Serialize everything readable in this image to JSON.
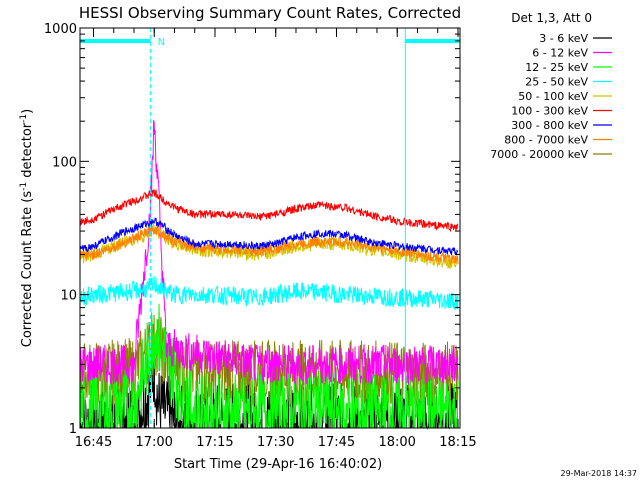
{
  "chart_data": {
    "type": "line",
    "title": "HESSI Observing Summary Count Rates, Corrected",
    "xlabel": "Start Time (29-Apr-16 16:40:02)",
    "ylabel": "Corrected Count Rate (s",
    "ylabel_sup1": "-1",
    "ylabel_mid": " detector",
    "ylabel_sup2": "-1",
    "ylabel_end": ")",
    "yscale": "log",
    "ylim": [
      1,
      1000
    ],
    "xlim_minutes": [
      16.67,
      96.5
    ],
    "x_ticks": [
      "16:45",
      "17:00",
      "17:15",
      "17:30",
      "17:45",
      "18:00",
      "18:15"
    ],
    "x_tick_minutes": [
      20,
      35,
      50,
      65,
      80,
      95,
      110
    ],
    "y_ticks": [
      "1",
      "10",
      "100",
      "1000"
    ],
    "y_tick_values": [
      1,
      10,
      100,
      1000
    ],
    "legend_header": "Det 1,3, Att 0",
    "legend_position": "right",
    "series": [
      {
        "name": "3 - 6 keV",
        "color": "#000000"
      },
      {
        "name": "6 - 12 keV",
        "color": "#ff00ff"
      },
      {
        "name": "12 - 25 keV",
        "color": "#00ff00"
      },
      {
        "name": "25 - 50 keV",
        "color": "#00ffff"
      },
      {
        "name": "50 - 100 keV",
        "color": "#d4c400"
      },
      {
        "name": "100 - 300 keV",
        "color": "#ff0000"
      },
      {
        "name": "300 - 800 keV",
        "color": "#0000ff"
      },
      {
        "name": "800 - 7000 keV",
        "color": "#ff8000"
      },
      {
        "name": "7000 - 20000 keV",
        "color": "#8b8000"
      }
    ],
    "profiles": {
      "100 - 300 keV": [
        [
          16.67,
          35
        ],
        [
          20,
          37
        ],
        [
          28,
          48
        ],
        [
          33,
          55
        ],
        [
          35,
          58
        ],
        [
          37,
          52
        ],
        [
          40,
          45
        ],
        [
          45,
          40
        ],
        [
          50,
          40
        ],
        [
          55,
          40
        ],
        [
          60,
          38
        ],
        [
          65,
          40
        ],
        [
          70,
          44
        ],
        [
          76,
          47
        ],
        [
          82,
          45
        ],
        [
          88,
          40
        ],
        [
          96,
          35
        ],
        [
          110,
          32
        ]
      ],
      "300 - 800 keV": [
        [
          16.67,
          22
        ],
        [
          20,
          23
        ],
        [
          28,
          30
        ],
        [
          33,
          34
        ],
        [
          35,
          36
        ],
        [
          37,
          33
        ],
        [
          40,
          28
        ],
        [
          45,
          24
        ],
        [
          50,
          24
        ],
        [
          55,
          24
        ],
        [
          60,
          23
        ],
        [
          65,
          24
        ],
        [
          70,
          27
        ],
        [
          76,
          29
        ],
        [
          82,
          28
        ],
        [
          88,
          25
        ],
        [
          96,
          23
        ],
        [
          110,
          21
        ]
      ],
      "800 - 7000 keV": [
        [
          16.67,
          19.5
        ],
        [
          20,
          20
        ],
        [
          28,
          25
        ],
        [
          33,
          29
        ],
        [
          35,
          31
        ],
        [
          37,
          29
        ],
        [
          40,
          25
        ],
        [
          45,
          23
        ],
        [
          50,
          22
        ],
        [
          55,
          22
        ],
        [
          60,
          21
        ],
        [
          65,
          22
        ],
        [
          70,
          24
        ],
        [
          76,
          25
        ],
        [
          82,
          25
        ],
        [
          88,
          23
        ],
        [
          96,
          21
        ],
        [
          110,
          18
        ]
      ],
      "50 - 100 keV": [
        [
          16.67,
          19
        ],
        [
          20,
          20
        ],
        [
          28,
          25
        ],
        [
          33,
          28
        ],
        [
          35,
          31
        ],
        [
          37,
          28
        ],
        [
          40,
          24
        ],
        [
          45,
          22
        ],
        [
          50,
          21
        ],
        [
          55,
          21
        ],
        [
          60,
          20
        ],
        [
          65,
          21
        ],
        [
          70,
          23
        ],
        [
          76,
          24
        ],
        [
          82,
          24
        ],
        [
          88,
          22
        ],
        [
          96,
          20
        ],
        [
          110,
          17
        ]
      ],
      "25 - 50 keV": [
        [
          16.67,
          9.5
        ],
        [
          20,
          10
        ],
        [
          28,
          10.5
        ],
        [
          33,
          11
        ],
        [
          35,
          12
        ],
        [
          37,
          11
        ],
        [
          40,
          10
        ],
        [
          50,
          10
        ],
        [
          60,
          9.5
        ],
        [
          65,
          10
        ],
        [
          70,
          10.5
        ],
        [
          76,
          10.5
        ],
        [
          82,
          10
        ],
        [
          96,
          9.5
        ],
        [
          110,
          9
        ]
      ],
      "12 - 25 keV": [
        [
          16.67,
          1.3
        ],
        [
          30,
          1.5
        ],
        [
          33,
          3
        ],
        [
          35,
          5.5
        ],
        [
          37,
          4
        ],
        [
          40,
          2.5
        ],
        [
          45,
          1.3
        ],
        [
          60,
          1.3
        ],
        [
          75,
          1.4
        ],
        [
          90,
          1.3
        ],
        [
          110,
          1.3
        ]
      ],
      "6 - 12 keV": [
        [
          16.67,
          3
        ],
        [
          30,
          3
        ],
        [
          34,
          40
        ],
        [
          35,
          200
        ],
        [
          36,
          60
        ],
        [
          38,
          4
        ],
        [
          60,
          3
        ],
        [
          80,
          3
        ],
        [
          110,
          3
        ]
      ],
      "3 - 6 keV": [
        [
          16.67,
          1.1
        ],
        [
          30,
          1.1
        ],
        [
          34,
          2
        ],
        [
          35,
          3
        ],
        [
          36,
          1.5
        ],
        [
          40,
          1.1
        ],
        [
          60,
          1.1
        ],
        [
          80,
          1.1
        ],
        [
          110,
          1.1
        ]
      ],
      "7000 - 20000 keV": [
        [
          16.67,
          2.5
        ],
        [
          30,
          2.7
        ],
        [
          34,
          4
        ],
        [
          36,
          4.5
        ],
        [
          38,
          3
        ],
        [
          45,
          2.6
        ],
        [
          60,
          2.6
        ],
        [
          80,
          2.6
        ],
        [
          110,
          2.5
        ]
      ]
    },
    "flag_bars": [
      {
        "label": "N",
        "start_minute": 16.67,
        "end_minute": 34.1
      },
      {
        "label": "",
        "start_minute": 97.0,
        "end_minute": 110.5
      }
    ],
    "vertical_markers_dashed_minutes": [
      34.1,
      110.5
    ],
    "vertical_markers_solid_minutes": [
      16.67,
      97.0
    ]
  },
  "footer": {
    "timestamp": "29-Mar-2018 14:37"
  }
}
